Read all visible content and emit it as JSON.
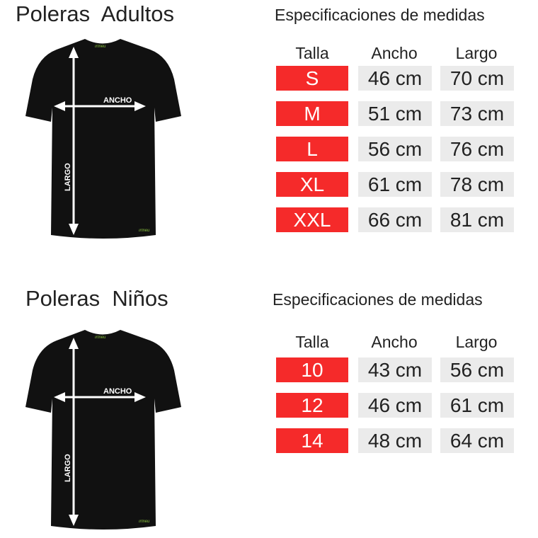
{
  "colors": {
    "size_bg": "#f52a2a",
    "value_bg": "#ebebeb",
    "shirt": "#111111",
    "logo": "#8dc63f"
  },
  "sections": [
    {
      "title": "Poleras  Adultos",
      "spec_title": "Especificaciones de medidas",
      "diagram": {
        "width_label": "ANCHO",
        "length_label": "LARGO"
      },
      "headers": [
        "Talla",
        "Ancho",
        "Largo"
      ],
      "rows": [
        {
          "size": "S",
          "ancho": "46 cm",
          "largo": "70 cm"
        },
        {
          "size": "M",
          "ancho": "51 cm",
          "largo": "73 cm"
        },
        {
          "size": "L",
          "ancho": "56 cm",
          "largo": "76 cm"
        },
        {
          "size": "XL",
          "ancho": "61 cm",
          "largo": "78 cm"
        },
        {
          "size": "XXL",
          "ancho": "66 cm",
          "largo": "81 cm"
        }
      ]
    },
    {
      "title": "Poleras  Niños",
      "spec_title": "Especificaciones de medidas",
      "diagram": {
        "width_label": "ANCHO",
        "length_label": "LARGO"
      },
      "headers": [
        "Talla",
        "Ancho",
        "Largo"
      ],
      "rows": [
        {
          "size": "10",
          "ancho": "43 cm",
          "largo": "56 cm"
        },
        {
          "size": "12",
          "ancho": "46 cm",
          "largo": "61 cm"
        },
        {
          "size": "14",
          "ancho": "48 cm",
          "largo": "64 cm"
        }
      ]
    }
  ]
}
